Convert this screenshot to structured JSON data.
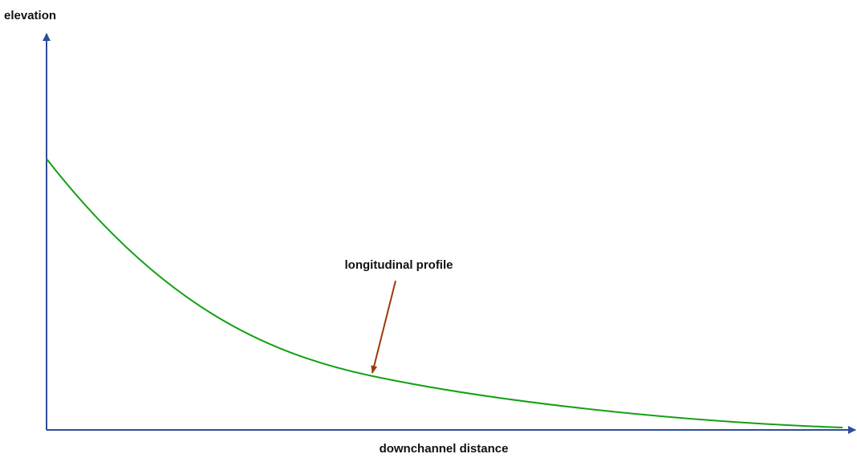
{
  "y_axis": {
    "label": "elevation"
  },
  "x_axis": {
    "label": "downchannel distance"
  },
  "annotation": {
    "text": "longitudinal profile"
  }
}
